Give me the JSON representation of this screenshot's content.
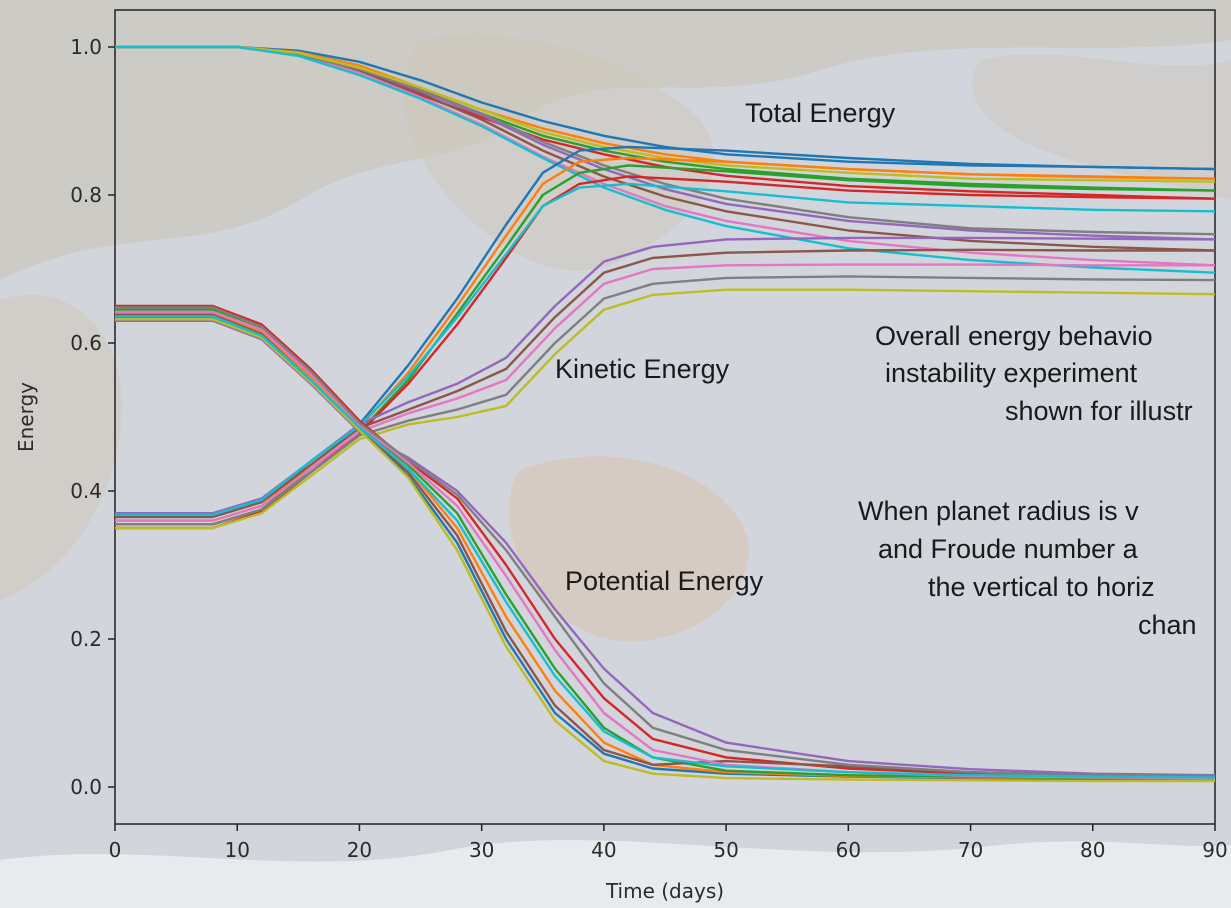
{
  "chart_data": {
    "type": "line",
    "title": "",
    "xlabel": "Time (days)",
    "ylabel": "Energy",
    "xlim": [
      0,
      90
    ],
    "ylim": [
      -0.05,
      1.05
    ],
    "x_ticks": [
      "0",
      "10",
      "20",
      "30",
      "40",
      "50",
      "60",
      "70",
      "80",
      "90"
    ],
    "y_ticks": [
      "0.0",
      "0.2",
      "0.4",
      "0.6",
      "0.8",
      "1.0"
    ],
    "grid": false,
    "legend": "none",
    "annotations": [
      "Total Energy",
      "Kinetic Energy",
      "Potential Energy"
    ],
    "notes": [
      "Overall energy behavio",
      "instability experiment",
      "shown for illustr",
      "When planet radius is v",
      "and Froude number a",
      "the vertical to horiz",
      "chan"
    ],
    "palette": [
      "#1f77b4",
      "#ff7f0e",
      "#2ca02c",
      "#d62728",
      "#9467bd",
      "#8c564b",
      "#e377c2",
      "#7f7f7f",
      "#bcbd22",
      "#17becf"
    ],
    "series": [
      {
        "group": "total",
        "x": [
          0,
          10,
          15,
          20,
          25,
          30,
          35,
          40,
          45,
          50,
          60,
          70,
          80,
          90
        ],
        "values": [
          1.0,
          1.0,
          0.995,
          0.98,
          0.955,
          0.925,
          0.9,
          0.88,
          0.865,
          0.855,
          0.845,
          0.84,
          0.838,
          0.835
        ]
      },
      {
        "group": "total",
        "x": [
          0,
          10,
          15,
          20,
          25,
          30,
          35,
          40,
          45,
          50,
          60,
          70,
          80,
          90
        ],
        "values": [
          1.0,
          1.0,
          0.993,
          0.975,
          0.945,
          0.915,
          0.89,
          0.87,
          0.855,
          0.845,
          0.835,
          0.828,
          0.825,
          0.822
        ]
      },
      {
        "group": "total",
        "x": [
          0,
          10,
          15,
          20,
          25,
          30,
          35,
          40,
          45,
          50,
          60,
          70,
          80,
          90
        ],
        "values": [
          1.0,
          1.0,
          0.99,
          0.97,
          0.94,
          0.91,
          0.88,
          0.86,
          0.845,
          0.835,
          0.822,
          0.815,
          0.81,
          0.806
        ]
      },
      {
        "group": "total",
        "x": [
          0,
          10,
          15,
          20,
          25,
          30,
          35,
          40,
          45,
          50,
          60,
          70,
          80,
          90
        ],
        "values": [
          1.0,
          1.0,
          0.99,
          0.965,
          0.935,
          0.905,
          0.875,
          0.855,
          0.838,
          0.826,
          0.812,
          0.805,
          0.8,
          0.795
        ]
      },
      {
        "group": "total",
        "x": [
          0,
          10,
          15,
          20,
          25,
          30,
          35,
          40,
          45,
          50,
          60,
          70,
          80,
          90
        ],
        "values": [
          1.0,
          1.0,
          0.99,
          0.968,
          0.94,
          0.908,
          0.868,
          0.835,
          0.808,
          0.788,
          0.765,
          0.752,
          0.745,
          0.74
        ]
      },
      {
        "group": "total",
        "x": [
          0,
          10,
          15,
          20,
          25,
          30,
          35,
          40,
          45,
          50,
          60,
          70,
          80,
          90
        ],
        "values": [
          1.0,
          1.0,
          0.99,
          0.967,
          0.937,
          0.902,
          0.86,
          0.825,
          0.798,
          0.778,
          0.752,
          0.738,
          0.73,
          0.725
        ]
      },
      {
        "group": "total",
        "x": [
          0,
          10,
          15,
          20,
          25,
          30,
          35,
          40,
          45,
          50,
          60,
          70,
          80,
          90
        ],
        "values": [
          1.0,
          1.0,
          0.989,
          0.965,
          0.932,
          0.895,
          0.852,
          0.815,
          0.785,
          0.765,
          0.738,
          0.722,
          0.712,
          0.705
        ]
      },
      {
        "group": "total",
        "x": [
          0,
          10,
          15,
          20,
          25,
          30,
          35,
          40,
          45,
          50,
          60,
          70,
          80,
          90
        ],
        "values": [
          1.0,
          1.0,
          0.99,
          0.97,
          0.942,
          0.91,
          0.872,
          0.84,
          0.815,
          0.795,
          0.77,
          0.755,
          0.75,
          0.747
        ]
      },
      {
        "group": "total",
        "x": [
          0,
          10,
          15,
          20,
          25,
          30,
          35,
          40,
          45,
          50,
          60,
          70,
          80,
          90
        ],
        "values": [
          1.0,
          1.0,
          0.992,
          0.972,
          0.945,
          0.915,
          0.885,
          0.865,
          0.85,
          0.84,
          0.83,
          0.822,
          0.82,
          0.818
        ]
      },
      {
        "group": "total",
        "x": [
          0,
          10,
          15,
          20,
          25,
          30,
          35,
          40,
          45,
          50,
          60,
          70,
          80,
          90
        ],
        "values": [
          1.0,
          1.0,
          0.988,
          0.962,
          0.93,
          0.893,
          0.85,
          0.81,
          0.78,
          0.758,
          0.728,
          0.712,
          0.702,
          0.695
        ]
      },
      {
        "group": "kinetic",
        "x": [
          0,
          8,
          12,
          16,
          20,
          24,
          28,
          32,
          35,
          38,
          42,
          50,
          60,
          70,
          80,
          90
        ],
        "values": [
          0.365,
          0.365,
          0.385,
          0.44,
          0.49,
          0.57,
          0.66,
          0.76,
          0.83,
          0.86,
          0.865,
          0.86,
          0.85,
          0.842,
          0.838,
          0.835
        ]
      },
      {
        "group": "kinetic",
        "x": [
          0,
          8,
          12,
          16,
          20,
          24,
          28,
          32,
          35,
          38,
          42,
          50,
          60,
          70,
          80,
          90
        ],
        "values": [
          0.36,
          0.36,
          0.38,
          0.435,
          0.485,
          0.56,
          0.65,
          0.745,
          0.815,
          0.845,
          0.85,
          0.845,
          0.835,
          0.828,
          0.824,
          0.822
        ]
      },
      {
        "group": "kinetic",
        "x": [
          0,
          8,
          12,
          16,
          20,
          24,
          28,
          32,
          35,
          38,
          42,
          50,
          60,
          70,
          80,
          90
        ],
        "values": [
          0.355,
          0.355,
          0.375,
          0.43,
          0.48,
          0.55,
          0.64,
          0.73,
          0.8,
          0.83,
          0.84,
          0.832,
          0.82,
          0.812,
          0.808,
          0.806
        ]
      },
      {
        "group": "kinetic",
        "x": [
          0,
          8,
          12,
          16,
          20,
          24,
          28,
          32,
          35,
          38,
          42,
          50,
          60,
          70,
          80,
          90
        ],
        "values": [
          0.35,
          0.35,
          0.372,
          0.425,
          0.478,
          0.545,
          0.625,
          0.715,
          0.785,
          0.815,
          0.825,
          0.818,
          0.806,
          0.8,
          0.797,
          0.795
        ]
      },
      {
        "group": "kinetic",
        "x": [
          0,
          8,
          12,
          16,
          20,
          24,
          28,
          32,
          36,
          40,
          44,
          50,
          60,
          70,
          80,
          90
        ],
        "values": [
          0.37,
          0.37,
          0.39,
          0.44,
          0.49,
          0.52,
          0.545,
          0.58,
          0.65,
          0.71,
          0.73,
          0.74,
          0.742,
          0.742,
          0.741,
          0.74
        ]
      },
      {
        "group": "kinetic",
        "x": [
          0,
          8,
          12,
          16,
          20,
          24,
          28,
          32,
          36,
          40,
          44,
          50,
          60,
          70,
          80,
          90
        ],
        "values": [
          0.365,
          0.365,
          0.385,
          0.435,
          0.485,
          0.51,
          0.535,
          0.565,
          0.635,
          0.695,
          0.715,
          0.722,
          0.725,
          0.726,
          0.725,
          0.725
        ]
      },
      {
        "group": "kinetic",
        "x": [
          0,
          8,
          12,
          16,
          20,
          24,
          28,
          32,
          36,
          40,
          44,
          50,
          60,
          70,
          80,
          90
        ],
        "values": [
          0.36,
          0.36,
          0.38,
          0.43,
          0.48,
          0.505,
          0.525,
          0.55,
          0.62,
          0.68,
          0.7,
          0.705,
          0.706,
          0.706,
          0.705,
          0.705
        ]
      },
      {
        "group": "kinetic",
        "x": [
          0,
          8,
          12,
          16,
          20,
          24,
          28,
          32,
          36,
          40,
          44,
          50,
          60,
          70,
          80,
          90
        ],
        "values": [
          0.355,
          0.355,
          0.375,
          0.425,
          0.475,
          0.495,
          0.51,
          0.53,
          0.6,
          0.66,
          0.68,
          0.688,
          0.69,
          0.688,
          0.686,
          0.685
        ]
      },
      {
        "group": "kinetic",
        "x": [
          0,
          8,
          12,
          16,
          20,
          24,
          28,
          32,
          36,
          40,
          44,
          50,
          60,
          70,
          80,
          90
        ],
        "values": [
          0.35,
          0.35,
          0.37,
          0.42,
          0.47,
          0.49,
          0.5,
          0.515,
          0.585,
          0.645,
          0.665,
          0.672,
          0.672,
          0.67,
          0.668,
          0.666
        ]
      },
      {
        "group": "kinetic",
        "x": [
          0,
          8,
          12,
          16,
          20,
          24,
          28,
          32,
          35,
          38,
          42,
          50,
          60,
          70,
          80,
          90
        ],
        "values": [
          0.368,
          0.368,
          0.388,
          0.44,
          0.488,
          0.555,
          0.635,
          0.72,
          0.785,
          0.81,
          0.815,
          0.805,
          0.79,
          0.785,
          0.78,
          0.778
        ]
      },
      {
        "group": "potential",
        "x": [
          0,
          8,
          12,
          16,
          20,
          24,
          28,
          32,
          36,
          40,
          44,
          50,
          60,
          70,
          80,
          90
        ],
        "values": [
          0.635,
          0.635,
          0.61,
          0.55,
          0.485,
          0.42,
          0.33,
          0.2,
          0.1,
          0.045,
          0.025,
          0.018,
          0.014,
          0.012,
          0.01,
          0.01
        ]
      },
      {
        "group": "potential",
        "x": [
          0,
          8,
          12,
          16,
          20,
          24,
          28,
          32,
          36,
          40,
          44,
          50,
          60,
          70,
          80,
          90
        ],
        "values": [
          0.64,
          0.64,
          0.615,
          0.555,
          0.49,
          0.43,
          0.35,
          0.23,
          0.13,
          0.06,
          0.03,
          0.02,
          0.015,
          0.013,
          0.012,
          0.011
        ]
      },
      {
        "group": "potential",
        "x": [
          0,
          8,
          12,
          16,
          20,
          24,
          28,
          32,
          36,
          40,
          44,
          50,
          60,
          70,
          80,
          90
        ],
        "values": [
          0.645,
          0.645,
          0.62,
          0.56,
          0.49,
          0.435,
          0.37,
          0.26,
          0.16,
          0.08,
          0.04,
          0.022,
          0.016,
          0.014,
          0.012,
          0.012
        ]
      },
      {
        "group": "potential",
        "x": [
          0,
          8,
          12,
          16,
          20,
          24,
          28,
          32,
          36,
          40,
          44,
          50,
          60,
          70,
          80,
          90
        ],
        "values": [
          0.65,
          0.65,
          0.625,
          0.565,
          0.495,
          0.44,
          0.39,
          0.3,
          0.2,
          0.12,
          0.065,
          0.04,
          0.025,
          0.018,
          0.015,
          0.014
        ]
      },
      {
        "group": "potential",
        "x": [
          0,
          8,
          12,
          16,
          20,
          24,
          28,
          32,
          36,
          40,
          44,
          50,
          60,
          70,
          80,
          90
        ],
        "values": [
          0.63,
          0.63,
          0.605,
          0.545,
          0.48,
          0.445,
          0.4,
          0.33,
          0.24,
          0.16,
          0.1,
          0.06,
          0.035,
          0.024,
          0.018,
          0.016
        ]
      },
      {
        "group": "potential",
        "x": [
          0,
          8,
          12,
          16,
          20,
          24,
          28,
          32,
          36,
          40,
          44,
          50,
          60,
          70,
          80,
          90
        ],
        "values": [
          0.638,
          0.638,
          0.612,
          0.55,
          0.485,
          0.425,
          0.34,
          0.21,
          0.11,
          0.05,
          0.03,
          0.035,
          0.028,
          0.02,
          0.016,
          0.014
        ]
      },
      {
        "group": "potential",
        "x": [
          0,
          8,
          12,
          16,
          20,
          24,
          28,
          32,
          36,
          40,
          44,
          50,
          60,
          70,
          80,
          90
        ],
        "values": [
          0.642,
          0.642,
          0.618,
          0.558,
          0.49,
          0.438,
          0.38,
          0.285,
          0.185,
          0.1,
          0.05,
          0.03,
          0.02,
          0.015,
          0.013,
          0.012
        ]
      },
      {
        "group": "potential",
        "x": [
          0,
          8,
          12,
          16,
          20,
          24,
          28,
          32,
          36,
          40,
          44,
          50,
          60,
          70,
          80,
          90
        ],
        "values": [
          0.648,
          0.648,
          0.622,
          0.562,
          0.492,
          0.442,
          0.395,
          0.32,
          0.23,
          0.14,
          0.08,
          0.05,
          0.03,
          0.02,
          0.016,
          0.015
        ]
      },
      {
        "group": "potential",
        "x": [
          0,
          8,
          12,
          16,
          20,
          24,
          28,
          32,
          36,
          40,
          44,
          50,
          60,
          70,
          80,
          90
        ],
        "values": [
          0.632,
          0.632,
          0.607,
          0.547,
          0.482,
          0.418,
          0.32,
          0.19,
          0.09,
          0.035,
          0.018,
          0.012,
          0.01,
          0.009,
          0.008,
          0.008
        ]
      },
      {
        "group": "potential",
        "x": [
          0,
          8,
          12,
          16,
          20,
          24,
          28,
          32,
          36,
          40,
          44,
          50,
          60,
          70,
          80,
          90
        ],
        "values": [
          0.636,
          0.636,
          0.61,
          0.55,
          0.486,
          0.43,
          0.36,
          0.25,
          0.15,
          0.075,
          0.04,
          0.028,
          0.02,
          0.016,
          0.014,
          0.013
        ]
      }
    ]
  }
}
